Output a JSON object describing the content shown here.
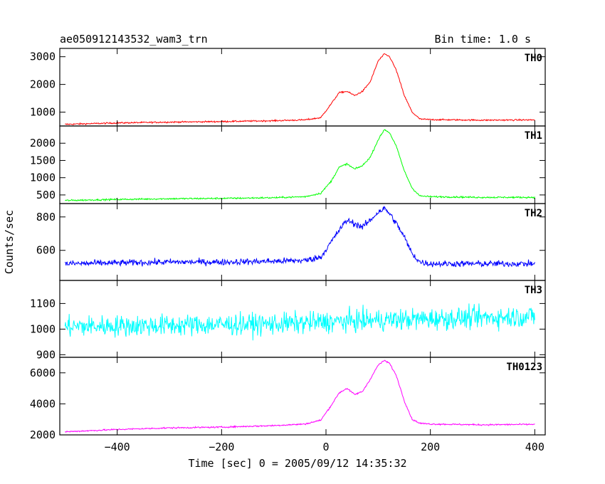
{
  "chart_data": {
    "type": "line",
    "title": "ae050912143532_wam3_trn",
    "subtitle": "Bin time: 1.0 s",
    "xlabel": "Time [sec] 0 = 2005/09/12 14:35:32",
    "ylabel": "Counts/sec",
    "xlim": [
      -510,
      420
    ],
    "xticks": [
      -400,
      -200,
      0,
      200,
      400
    ],
    "grid": false,
    "panels": [
      {
        "name": "TH0",
        "color": "#ff0000",
        "ylim": [
          500,
          3300
        ],
        "yticks": [
          1000,
          2000,
          3000
        ],
        "x": [
          -500,
          -400,
          -300,
          -200,
          -100,
          -40,
          -10,
          10,
          25,
          40,
          55,
          70,
          85,
          100,
          112,
          122,
          135,
          150,
          165,
          180,
          200,
          300,
          400
        ],
        "y": [
          560,
          610,
          640,
          660,
          690,
          720,
          800,
          1300,
          1700,
          1750,
          1600,
          1750,
          2100,
          2850,
          3100,
          3000,
          2500,
          1600,
          1000,
          750,
          730,
          710,
          720
        ],
        "noise": 25
      },
      {
        "name": "TH1",
        "color": "#00ff00",
        "ylim": [
          250,
          2500
        ],
        "yticks": [
          500,
          1000,
          1500,
          2000
        ],
        "x": [
          -500,
          -400,
          -300,
          -200,
          -100,
          -40,
          -10,
          10,
          25,
          40,
          55,
          70,
          85,
          100,
          112,
          122,
          135,
          150,
          165,
          180,
          200,
          300,
          400
        ],
        "y": [
          340,
          370,
          390,
          400,
          420,
          450,
          550,
          900,
          1300,
          1400,
          1250,
          1350,
          1600,
          2100,
          2400,
          2300,
          1900,
          1200,
          700,
          470,
          450,
          430,
          430
        ],
        "noise": 22
      },
      {
        "name": "TH2",
        "color": "#0000ff",
        "ylim": [
          420,
          880
        ],
        "yticks": [
          600,
          800
        ],
        "x": [
          -500,
          -400,
          -300,
          -200,
          -100,
          -40,
          -10,
          10,
          25,
          40,
          55,
          70,
          85,
          100,
          112,
          122,
          135,
          150,
          165,
          180,
          200,
          300,
          400
        ],
        "y": [
          520,
          525,
          530,
          530,
          535,
          540,
          560,
          650,
          720,
          780,
          760,
          740,
          780,
          830,
          850,
          820,
          760,
          680,
          580,
          530,
          520,
          520,
          520
        ],
        "noise": 18
      },
      {
        "name": "TH3",
        "color": "#00ffff",
        "ylim": [
          890,
          1190
        ],
        "yticks": [
          900,
          1000,
          1100
        ],
        "x": [
          -500,
          -300,
          -100,
          100,
          300,
          400
        ],
        "y": [
          1010,
          1015,
          1020,
          1035,
          1045,
          1050
        ],
        "noise": 40
      },
      {
        "name": "TH0123",
        "color": "#ff00ff",
        "ylim": [
          2000,
          7000
        ],
        "yticks": [
          2000,
          4000,
          6000
        ],
        "x": [
          -500,
          -400,
          -300,
          -200,
          -100,
          -40,
          -10,
          10,
          25,
          40,
          55,
          70,
          85,
          100,
          112,
          122,
          135,
          150,
          165,
          180,
          200,
          300,
          400
        ],
        "y": [
          2200,
          2350,
          2450,
          2500,
          2600,
          2700,
          2950,
          3900,
          4700,
          5000,
          4600,
          4800,
          5600,
          6500,
          6800,
          6600,
          5800,
          4200,
          3000,
          2750,
          2700,
          2650,
          2680
        ],
        "noise": 45
      }
    ]
  }
}
